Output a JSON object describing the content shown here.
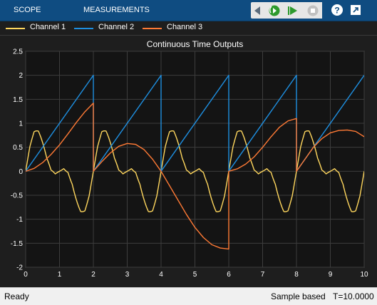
{
  "toolstrip": {
    "tabs": [
      "SCOPE",
      "MEASUREMENTS"
    ],
    "icons": [
      "back-arrow-icon",
      "step-back-icon",
      "run-icon",
      "step-forward-icon",
      "stop-icon",
      "help-icon",
      "undock-icon"
    ]
  },
  "legend": {
    "items": [
      {
        "label": "Channel 1",
        "color": "#ffd75e"
      },
      {
        "label": "Channel 2",
        "color": "#1e8fe0"
      },
      {
        "label": "Channel 3",
        "color": "#ff7a35"
      }
    ]
  },
  "chart_data": {
    "type": "line",
    "title": "Continuous Time Outputs",
    "xlim": [
      0,
      10
    ],
    "ylim": [
      -2,
      2.5
    ],
    "xticks": [
      "0",
      "1",
      "2",
      "3",
      "4",
      "5",
      "6",
      "7",
      "8",
      "9",
      "10"
    ],
    "yticks": [
      "-2",
      "-1.5",
      "-1",
      "-0.5",
      "0",
      "0.5",
      "1",
      "1.5",
      "2",
      "2.5"
    ],
    "grid": true,
    "background": "#141414",
    "series": [
      {
        "name": "Channel 1",
        "color": "#ffd75e",
        "x": [
          0,
          0.125,
          0.25,
          0.375,
          0.5,
          0.625,
          0.75,
          0.875,
          1,
          1.125,
          1.25,
          1.375,
          1.5,
          1.625,
          1.75,
          1.875,
          2,
          2.125,
          2.25,
          2.375,
          2.5,
          2.625,
          2.75,
          2.875,
          3,
          3.125,
          3.25,
          3.375,
          3.5,
          3.625,
          3.75,
          3.875,
          4,
          4.125,
          4.25,
          4.375,
          4.5,
          4.625,
          4.75,
          4.875,
          5,
          5.125,
          5.25,
          5.375,
          5.5,
          5.625,
          5.75,
          5.875,
          6,
          6.125,
          6.25,
          6.375,
          6.5,
          6.625,
          6.75,
          6.875,
          7,
          7.125,
          7.25,
          7.375,
          7.5,
          7.625,
          7.75,
          7.875,
          8,
          8.125,
          8.25,
          8.375,
          8.5,
          8.625,
          8.75,
          8.875,
          9,
          9.125,
          9.25,
          9.375,
          9.5,
          9.625,
          9.75,
          9.875,
          10
        ],
        "values": [
          0,
          0.71,
          1,
          0.71,
          0,
          -0.71,
          -1,
          -0.71,
          0,
          0.71,
          1,
          0.71,
          0,
          -0.71,
          -1,
          -0.71,
          0,
          0.71,
          1,
          0.71,
          0,
          -0.71,
          -1,
          -0.71,
          0,
          0.71,
          1,
          0.71,
          0,
          -0.71,
          -1,
          -0.71,
          0,
          0.71,
          1,
          0.71,
          0,
          -0.71,
          -1,
          -0.71,
          0,
          0.71,
          1,
          0.71,
          0,
          -0.71,
          -1,
          -0.71,
          0,
          0.71,
          1,
          0.71,
          0,
          -0.71,
          -1,
          -0.71,
          0,
          0.71,
          1,
          0.71,
          0,
          -0.71,
          -1,
          -0.71,
          0,
          0.71,
          1,
          0.71,
          0,
          -0.71,
          -1,
          -0.71,
          0,
          0.71,
          1,
          0.71,
          0,
          -0.71,
          -1,
          -0.71,
          0
        ]
      },
      {
        "name": "Channel 2",
        "color": "#1e8fe0",
        "x": [
          0,
          2,
          2,
          4,
          4,
          6,
          6,
          8,
          8,
          10
        ],
        "values": [
          0,
          2,
          0,
          2,
          0,
          2,
          0,
          2,
          0,
          2
        ]
      },
      {
        "name": "Channel 3",
        "color": "#ff7a35",
        "x": [
          0,
          0.25,
          0.5,
          0.75,
          1,
          1.25,
          1.5,
          1.75,
          2,
          2,
          2.25,
          2.5,
          2.75,
          3,
          3.25,
          3.5,
          3.75,
          4,
          4.25,
          4.5,
          4.75,
          5,
          5.25,
          5.5,
          5.75,
          6,
          6,
          6.25,
          6.5,
          6.75,
          7,
          7.25,
          7.5,
          7.75,
          8,
          8,
          8.25,
          8.5,
          8.75,
          9,
          9.25,
          9.5,
          9.75,
          10
        ],
        "values": [
          0,
          0.06,
          0.18,
          0.35,
          0.55,
          0.78,
          1.02,
          1.24,
          1.42,
          0,
          0.2,
          0.38,
          0.52,
          0.58,
          0.56,
          0.45,
          0.25,
          0,
          -0.3,
          -0.6,
          -0.9,
          -1.17,
          -1.38,
          -1.53,
          -1.6,
          -1.62,
          0,
          0.05,
          0.15,
          0.3,
          0.5,
          0.72,
          0.92,
          1.05,
          1.1,
          0,
          0.25,
          0.5,
          0.68,
          0.8,
          0.85,
          0.86,
          0.83,
          0.72
        ]
      }
    ]
  },
  "status": {
    "left": "Ready",
    "mode": "Sample based",
    "time": "T=10.0000"
  }
}
